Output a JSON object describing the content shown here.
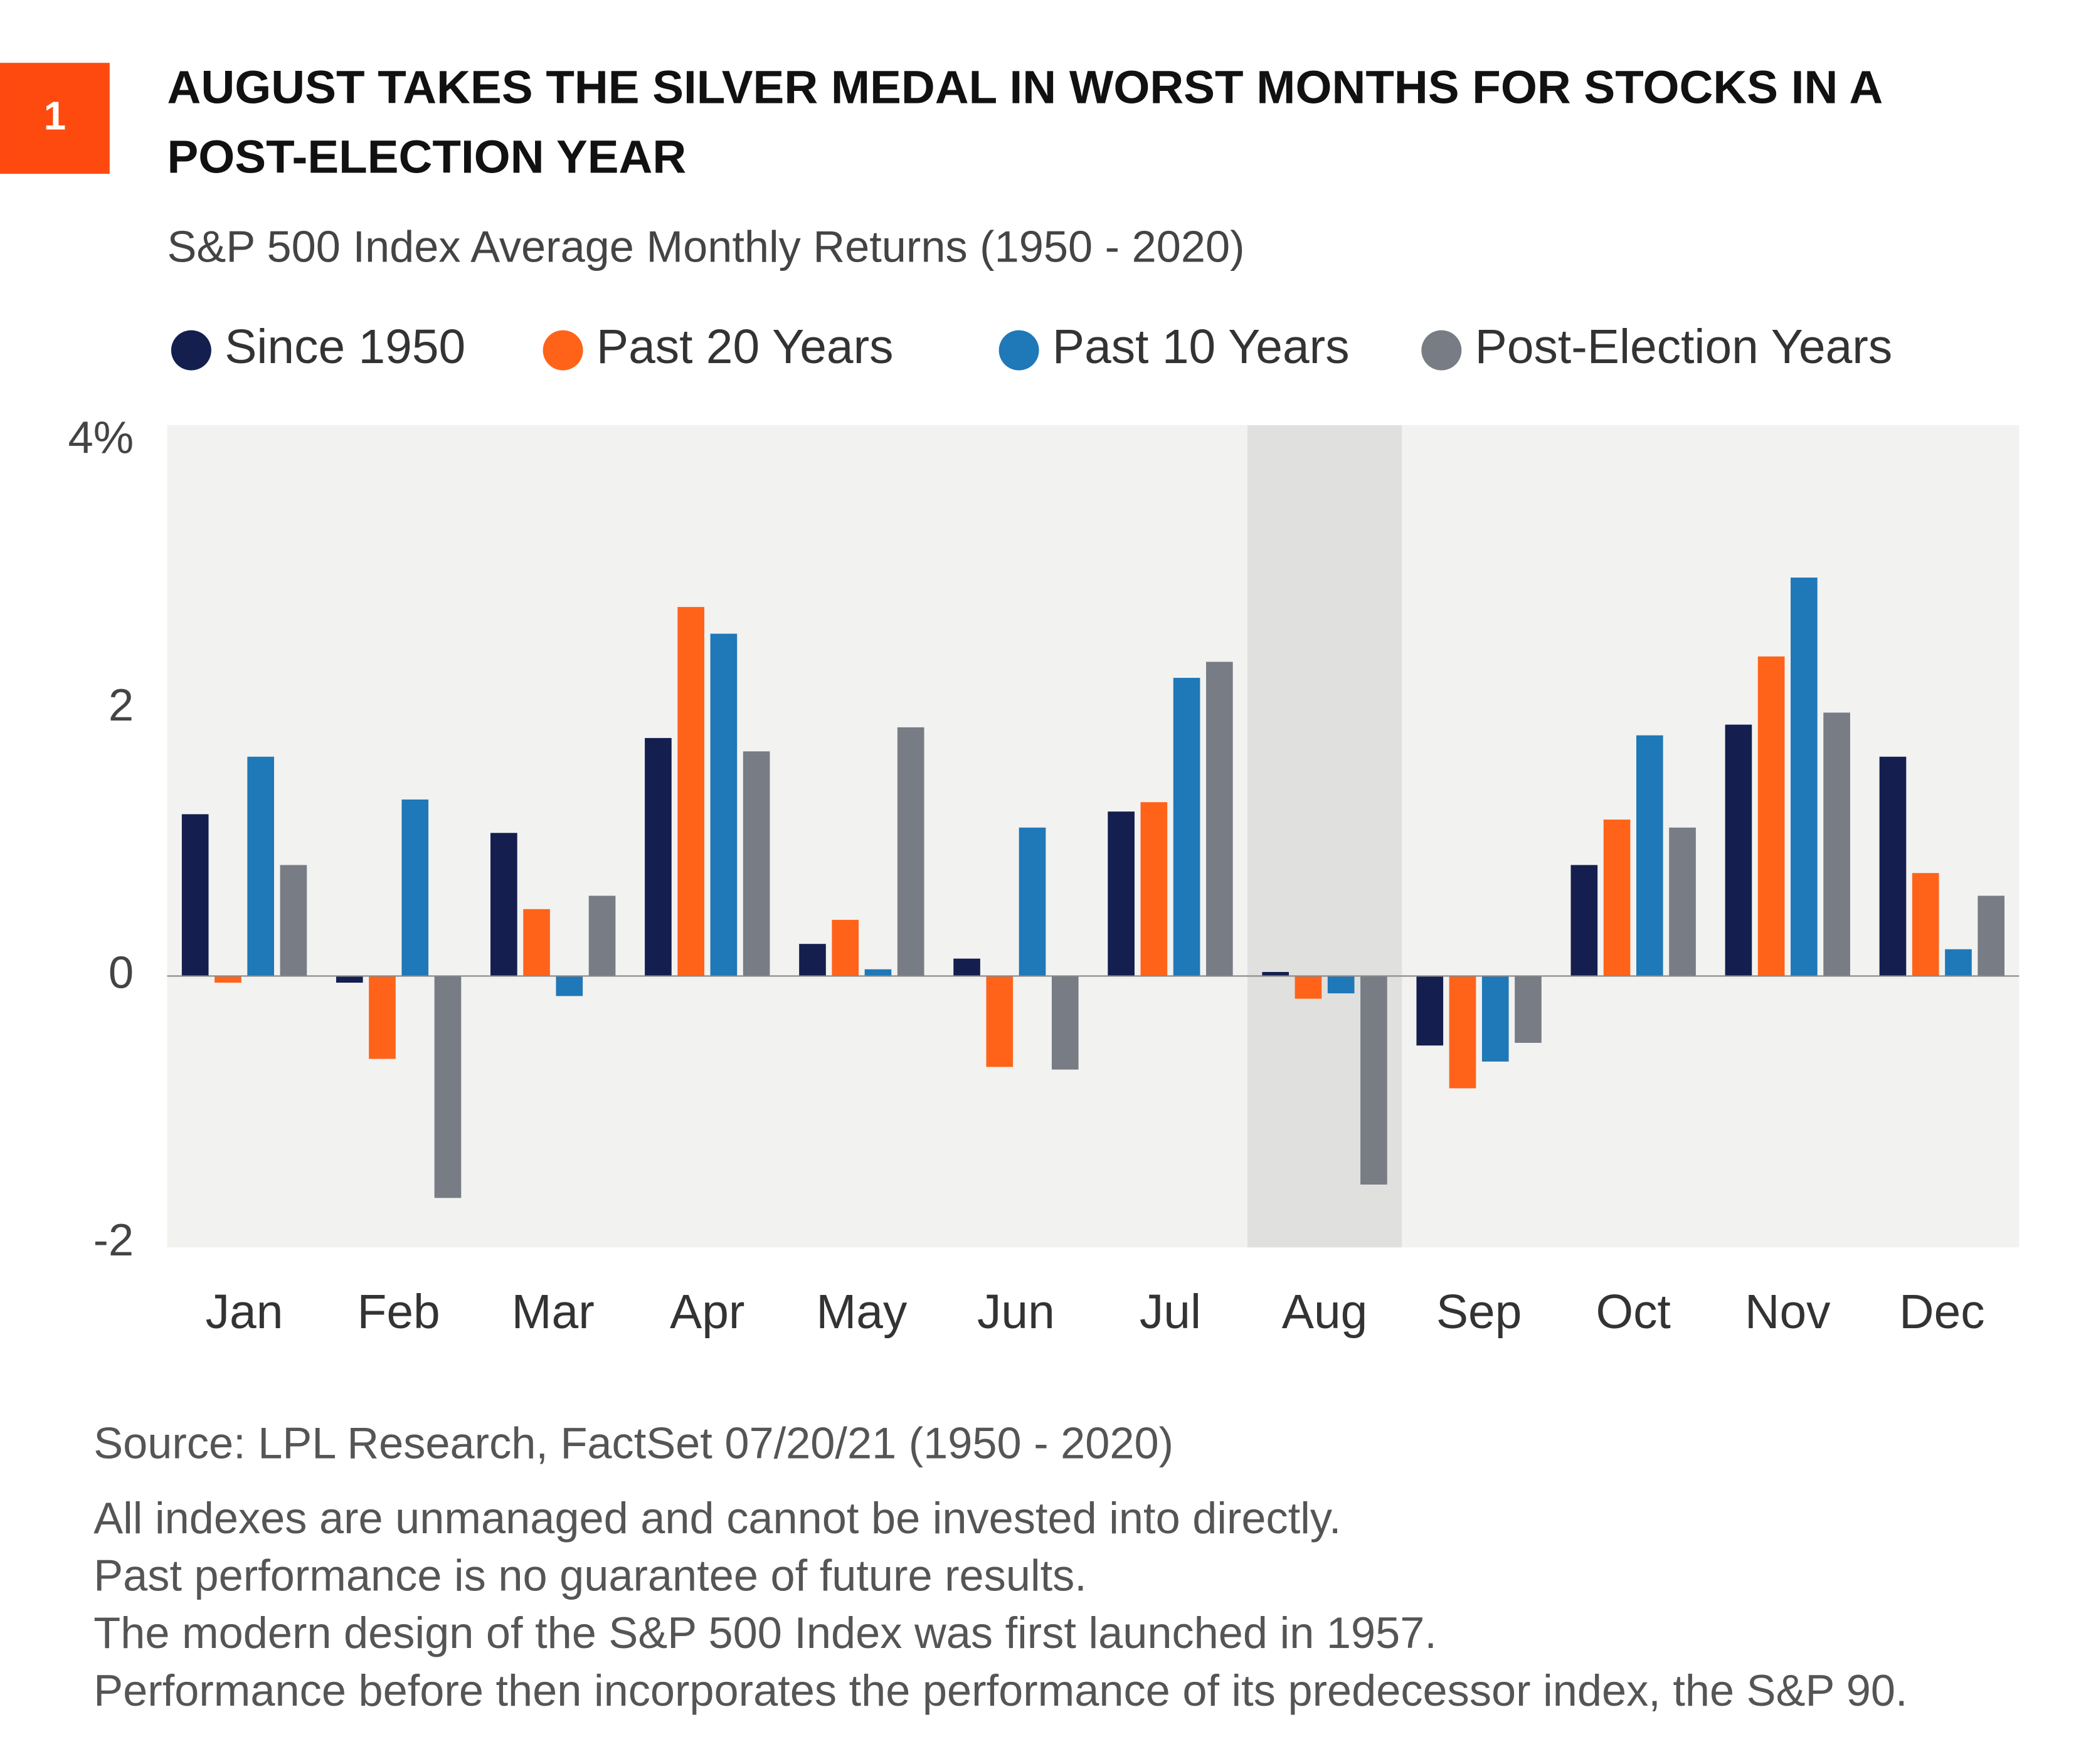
{
  "chart_data": {
    "type": "bar",
    "badge": "1",
    "title": [
      "AUGUST TAKES THE SILVER MEDAL IN WORST MONTHS FOR STOCKS IN A",
      "POST-ELECTION YEAR"
    ],
    "subtitle": "S&P 500 Index Average Monthly Returns (1950 - 2020)",
    "categories": [
      "Jan",
      "Feb",
      "Mar",
      "Apr",
      "May",
      "Jun",
      "Jul",
      "Aug",
      "Sep",
      "Oct",
      "Nov",
      "Dec"
    ],
    "highlight_category": "Aug",
    "series": [
      {
        "name": "Since 1950",
        "color": "#141f4f",
        "values": [
          1.21,
          -0.05,
          1.07,
          1.78,
          0.24,
          0.13,
          1.23,
          0.03,
          -0.52,
          0.83,
          1.88,
          1.64
        ]
      },
      {
        "name": "Past 20 Years",
        "color": "#ff6319",
        "values": [
          -0.05,
          -0.62,
          0.5,
          2.76,
          0.42,
          -0.68,
          1.3,
          -0.17,
          -0.84,
          1.17,
          2.39,
          0.77
        ]
      },
      {
        "name": "Past 10 Years",
        "color": "#1f78b8",
        "values": [
          1.64,
          1.32,
          -0.15,
          2.56,
          0.05,
          1.11,
          2.23,
          -0.13,
          -0.64,
          1.8,
          2.98,
          0.2
        ]
      },
      {
        "name": "Post-Election Years",
        "color": "#787c84",
        "values": [
          0.83,
          -1.66,
          0.6,
          1.68,
          1.86,
          -0.7,
          2.35,
          -1.56,
          -0.5,
          1.11,
          1.97,
          0.6
        ]
      }
    ],
    "ylim": [
      -2.03,
      4.12
    ],
    "yticks": [
      {
        "value": 4,
        "label": "4%"
      },
      2,
      0,
      -2
    ],
    "grid": false,
    "source": "Source: LPL Research, FactSet  07/20/21  (1950 - 2020)",
    "notes": [
      "All indexes are unmanaged and cannot be invested into directly.",
      "Past performance is no guarantee of future results.",
      "The modern design of the S&P 500 Index was first launched in 1957.",
      "Performance before then incorporates the performance of its predecessor index, the S&P 90."
    ]
  }
}
